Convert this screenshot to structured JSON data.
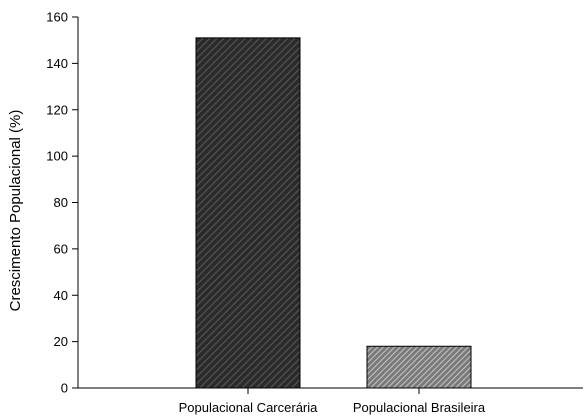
{
  "chart_data": {
    "type": "bar",
    "categories": [
      "Populacional Carcerária",
      "Populacional Brasileira"
    ],
    "values": [
      151,
      18
    ],
    "title": "",
    "xlabel": "",
    "ylabel": "Crescimento Populacional (%)",
    "ylim": [
      0,
      160
    ],
    "yticks": [
      0,
      20,
      40,
      60,
      80,
      100,
      120,
      140,
      160
    ],
    "grid": false,
    "bar_styles": [
      {
        "fill": "#2b2b2b",
        "hatch": "#5a5a5a",
        "stroke": "#000000"
      },
      {
        "fill": "#7a7a7a",
        "hatch": "#d8d8d8",
        "stroke": "#000000"
      }
    ]
  }
}
